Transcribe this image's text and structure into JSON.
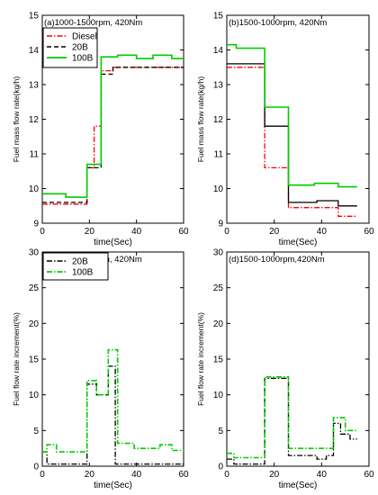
{
  "chart_data": [
    {
      "type": "line",
      "title": "(a)1000-1500rpm, 420Nm",
      "xlabel": "time(Sec)",
      "ylabel": "Fuel mass flow rate(kg/h)",
      "xlim": [
        0,
        60
      ],
      "ylim": [
        9,
        15
      ],
      "xticks": [
        0,
        20,
        40,
        60
      ],
      "yticks": [
        9,
        10,
        11,
        12,
        13,
        14,
        15
      ],
      "legend_position": "top-left",
      "series": [
        {
          "name": "Diesel",
          "color": "#ff0000",
          "style": "dashdot",
          "x": [
            0,
            19,
            19,
            22,
            22,
            25,
            25,
            30,
            30,
            60
          ],
          "y": [
            9.55,
            9.55,
            10.6,
            10.6,
            11.8,
            11.8,
            13.4,
            13.4,
            13.5,
            13.5
          ]
        },
        {
          "name": "20B",
          "color": "#000000",
          "style": "dashed",
          "x": [
            0,
            19,
            19,
            25,
            25,
            30,
            30,
            60
          ],
          "y": [
            9.6,
            9.6,
            10.6,
            10.6,
            13.3,
            13.3,
            13.5,
            13.5
          ]
        },
        {
          "name": "100B",
          "color": "#00cc00",
          "style": "solid",
          "x": [
            0,
            10,
            10,
            19,
            19,
            25,
            25,
            32,
            32,
            40,
            40,
            47,
            47,
            55,
            55,
            60
          ],
          "y": [
            9.85,
            9.85,
            9.75,
            9.75,
            10.7,
            10.7,
            13.8,
            13.8,
            13.85,
            13.85,
            13.75,
            13.75,
            13.85,
            13.85,
            13.75,
            13.75
          ]
        }
      ]
    },
    {
      "type": "line",
      "title": "(b)1500-1000rpm, 420Nm",
      "xlabel": "time(Sec)",
      "ylabel": "Fuel mass flow rate(kg/h)",
      "xlim": [
        0,
        60
      ],
      "ylim": [
        9,
        15
      ],
      "xticks": [
        0,
        20,
        40,
        60
      ],
      "yticks": [
        9,
        10,
        11,
        12,
        13,
        14,
        15
      ],
      "series": [
        {
          "name": "Diesel",
          "color": "#ff0000",
          "style": "dashdot",
          "x": [
            0,
            16,
            16,
            26,
            26,
            47,
            47,
            55
          ],
          "y": [
            13.5,
            13.5,
            10.6,
            10.6,
            9.45,
            9.45,
            9.2,
            9.2
          ]
        },
        {
          "name": "20B",
          "color": "#000000",
          "style": "solid",
          "x": [
            0,
            16,
            16,
            26,
            26,
            38,
            38,
            47,
            47,
            55
          ],
          "y": [
            13.6,
            13.6,
            11.8,
            11.8,
            9.6,
            9.6,
            9.65,
            9.65,
            9.5,
            9.5
          ]
        },
        {
          "name": "100B",
          "color": "#00cc00",
          "style": "solid",
          "x": [
            0,
            4,
            4,
            16,
            16,
            26,
            26,
            37,
            37,
            47,
            47,
            55
          ],
          "y": [
            14.15,
            14.15,
            14.05,
            14.05,
            12.35,
            12.35,
            10.1,
            10.1,
            10.15,
            10.15,
            10.05,
            10.05
          ]
        }
      ]
    },
    {
      "type": "line",
      "title": "(c)1000-1500rpm, 420Nm",
      "xlabel": "time(Sec)",
      "ylabel": "Fuel flow rate increment(%)",
      "xlim": [
        0,
        60
      ],
      "ylim": [
        0,
        30
      ],
      "xticks": [
        0,
        20,
        40,
        60
      ],
      "yticks": [
        0,
        5,
        10,
        15,
        20,
        25,
        30
      ],
      "legend_position": "top",
      "series": [
        {
          "name": "20B",
          "color": "#000000",
          "style": "dashdot",
          "x": [
            0,
            2,
            2,
            19,
            19,
            23,
            23,
            28,
            28,
            31,
            31,
            60
          ],
          "y": [
            2.0,
            2.0,
            0.3,
            0.3,
            11.5,
            11.5,
            10.0,
            10.0,
            14.0,
            14.0,
            0.3,
            0.3
          ]
        },
        {
          "name": "100B",
          "color": "#00cc00",
          "style": "dashdot",
          "x": [
            0,
            2,
            2,
            6,
            6,
            19,
            19,
            23,
            23,
            28,
            28,
            32,
            32,
            39,
            39,
            50,
            50,
            55,
            55,
            60
          ],
          "y": [
            2.0,
            2.0,
            3.0,
            3.0,
            2.0,
            2.0,
            12.0,
            12.0,
            10.0,
            10.0,
            16.3,
            16.3,
            3.2,
            3.2,
            2.5,
            2.5,
            3.0,
            3.0,
            2.2,
            2.2
          ]
        }
      ]
    },
    {
      "type": "line",
      "title": "(d)1500-1000rpm,420Nm",
      "xlabel": "time(Sec)",
      "ylabel": "Fuel flow rate increment(%)",
      "xlim": [
        0,
        60
      ],
      "ylim": [
        0,
        30
      ],
      "xticks": [
        0,
        20,
        40,
        60
      ],
      "yticks": [
        0,
        5,
        10,
        15,
        20,
        25,
        30
      ],
      "series": [
        {
          "name": "20B",
          "color": "#000000",
          "style": "dashdot",
          "x": [
            0,
            3,
            3,
            16,
            16,
            26,
            26,
            38,
            38,
            42,
            42,
            45,
            45,
            48,
            48,
            52,
            52,
            55
          ],
          "y": [
            1.0,
            1.0,
            0.3,
            0.3,
            12.3,
            12.3,
            1.5,
            1.5,
            1.0,
            1.0,
            1.5,
            1.5,
            6.0,
            6.0,
            4.5,
            4.5,
            3.8,
            3.8
          ]
        },
        {
          "name": "100B",
          "color": "#00cc00",
          "style": "dashdot",
          "x": [
            0,
            3,
            3,
            16,
            16,
            26,
            26,
            45,
            45,
            50,
            50,
            55
          ],
          "y": [
            1.8,
            1.8,
            1.2,
            1.2,
            12.5,
            12.5,
            2.5,
            2.5,
            6.8,
            6.8,
            5.0,
            5.0
          ]
        }
      ]
    }
  ]
}
